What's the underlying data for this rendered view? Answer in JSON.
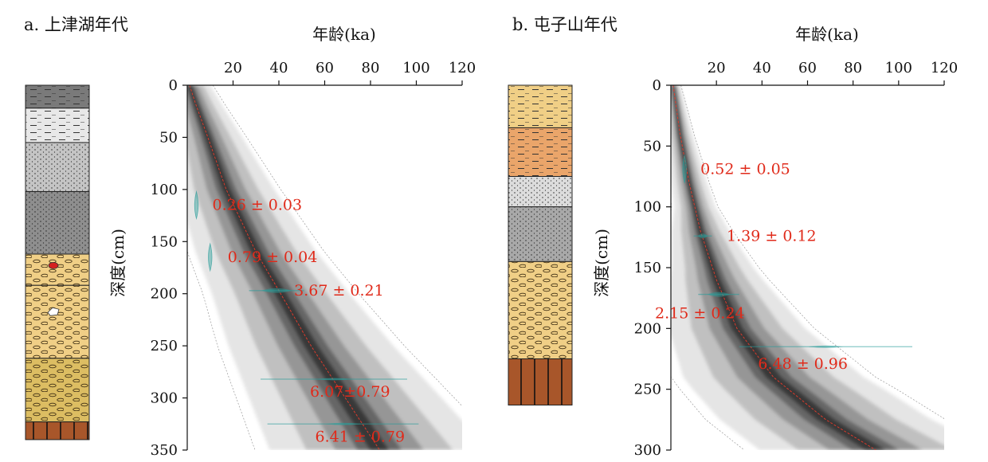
{
  "colors": {
    "annotation": "#e02a1a",
    "distribution": "#2a9d9a",
    "model_band": "#000000",
    "median": "#e83a2a"
  },
  "chart_data": [
    {
      "type": "age-depth",
      "panel_title": "a. 上津湖年代",
      "xlabel": "年龄(ka)",
      "ylabel": "深度(cm)",
      "xlim": [
        0,
        120
      ],
      "ylim": [
        0,
        350
      ],
      "x_ticks": [
        "20",
        "40",
        "60",
        "80",
        "100",
        "120"
      ],
      "y_ticks": [
        "0",
        "50",
        "100",
        "150",
        "200",
        "250",
        "300",
        "350"
      ],
      "dates": [
        {
          "label": "0.26 ± 0.03",
          "depth": 115,
          "age": 4,
          "spread": 2
        },
        {
          "label": "0.79 ± 0.04",
          "depth": 165,
          "age": 10,
          "spread": 2
        },
        {
          "label": "3.67 ± 0.21",
          "depth": 197,
          "age": 39,
          "spread": 12
        },
        {
          "label": "6.07±0.79",
          "depth": 282,
          "age": 64,
          "spread": 32
        },
        {
          "label": "6.41 ± 0.79",
          "depth": 325,
          "age": 68,
          "spread": 33
        }
      ],
      "median_curve": [
        [
          1,
          0
        ],
        [
          4,
          20
        ],
        [
          9,
          50
        ],
        [
          17,
          100
        ],
        [
          30,
          160
        ],
        [
          40,
          197
        ],
        [
          54,
          250
        ],
        [
          69,
          300
        ],
        [
          84,
          350
        ]
      ],
      "spread_curve": [
        [
          0,
          3
        ],
        [
          50,
          5
        ],
        [
          100,
          7
        ],
        [
          200,
          10
        ],
        [
          300,
          14
        ],
        [
          350,
          16
        ]
      ],
      "strata": [
        {
          "from": 0,
          "to": 22,
          "fill": "#7a7a7a",
          "pattern": "dash"
        },
        {
          "from": 22,
          "to": 55,
          "fill": "#e8e8e8",
          "pattern": "dash"
        },
        {
          "from": 55,
          "to": 102,
          "fill": "#c4c4c4",
          "pattern": "dot"
        },
        {
          "from": 102,
          "to": 162,
          "fill": "#8e8e8e",
          "pattern": "dot"
        },
        {
          "from": 162,
          "to": 192,
          "fill": "#f0cf86",
          "pattern": "oval"
        },
        {
          "from": 192,
          "to": 262,
          "fill": "#f0cf86",
          "pattern": "oval"
        },
        {
          "from": 262,
          "to": 323,
          "fill": "#dcbd62",
          "pattern": "oval"
        },
        {
          "from": 323,
          "to": 340,
          "fill": "#a8562a",
          "pattern": "vline"
        }
      ]
    },
    {
      "type": "age-depth",
      "panel_title": "b. 屯子山年代",
      "xlabel": "年龄(ka)",
      "ylabel": "深度(cm)",
      "xlim": [
        0,
        120
      ],
      "ylim": [
        0,
        300
      ],
      "x_ticks": [
        "20",
        "40",
        "60",
        "80",
        "100",
        "120"
      ],
      "y_ticks": [
        "0",
        "50",
        "100",
        "150",
        "200",
        "250",
        "300"
      ],
      "dates": [
        {
          "label": "0.52 ± 0.05",
          "depth": 69,
          "age": 6,
          "spread": 2
        },
        {
          "label": "1.39 ± 0.12",
          "depth": 124,
          "age": 14,
          "spread": 4
        },
        {
          "label": "2.15 ± 0.24",
          "depth": 172,
          "age": 21,
          "spread": 9
        },
        {
          "label": "6.48 ± 0.96",
          "depth": 215,
          "age": 68,
          "spread": 38
        }
      ],
      "median_curve": [
        [
          1,
          0
        ],
        [
          4,
          40
        ],
        [
          8,
          80
        ],
        [
          13,
          120
        ],
        [
          20,
          160
        ],
        [
          29,
          200
        ],
        [
          45,
          240
        ],
        [
          68,
          275
        ],
        [
          90,
          300
        ]
      ],
      "spread_curve": [
        [
          0,
          1
        ],
        [
          100,
          3
        ],
        [
          150,
          6
        ],
        [
          200,
          10
        ],
        [
          250,
          14
        ],
        [
          300,
          17
        ]
      ],
      "strata": [
        {
          "from": 0,
          "to": 35,
          "fill": "#f0cf86",
          "pattern": "dash"
        },
        {
          "from": 35,
          "to": 75,
          "fill": "#eaa56a",
          "pattern": "dash"
        },
        {
          "from": 75,
          "to": 100,
          "fill": "#dcdcdc",
          "pattern": "dot"
        },
        {
          "from": 100,
          "to": 145,
          "fill": "#a8a8a8",
          "pattern": "dot"
        },
        {
          "from": 145,
          "to": 225,
          "fill": "#f0cf86",
          "pattern": "oval"
        },
        {
          "from": 225,
          "to": 263,
          "fill": "#a8562a",
          "pattern": "vline"
        }
      ]
    }
  ]
}
